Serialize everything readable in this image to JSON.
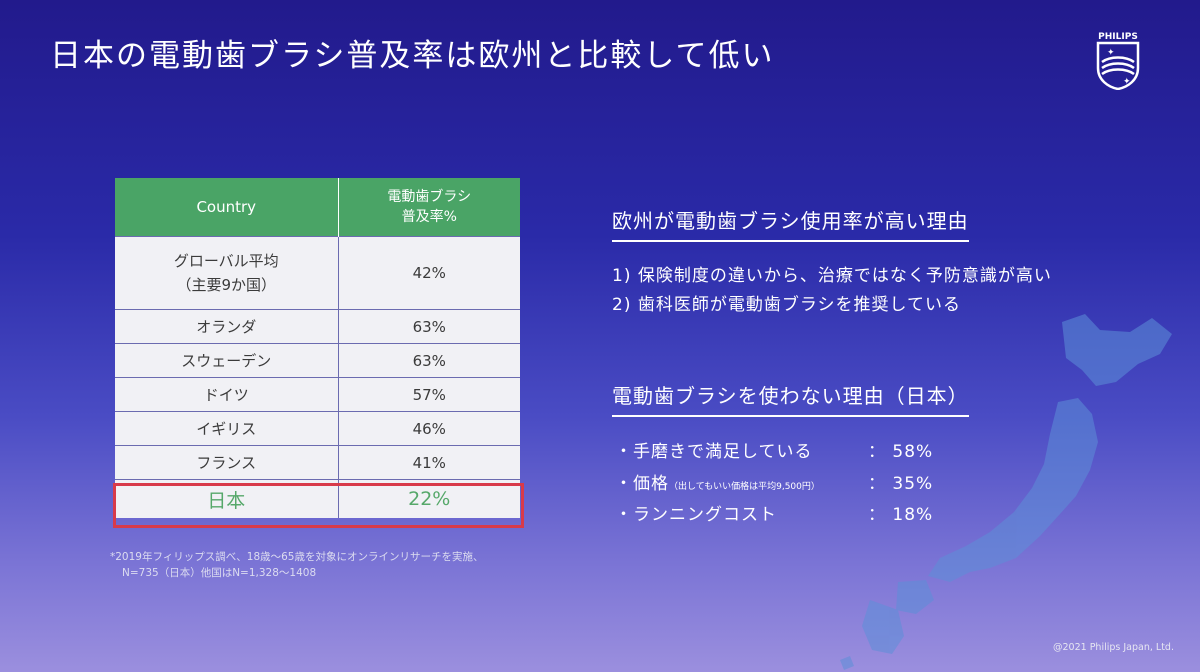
{
  "slide": {
    "title": "日本の電動歯ブラシ普及率は欧州と比較して低い",
    "brand_name": "PHILIPS",
    "copyright": "@2021 Philips Japan, Ltd."
  },
  "table": {
    "headers": [
      "Country",
      "電動歯ブラシ",
      "普及率%"
    ],
    "rows": [
      {
        "country_line1": "グローバル平均",
        "country_line2": "（主要9か国）",
        "rate": "42%"
      },
      {
        "country": "オランダ",
        "rate": "63%"
      },
      {
        "country": "スウェーデン",
        "rate": "63%"
      },
      {
        "country": "ドイツ",
        "rate": "57%"
      },
      {
        "country": "イギリス",
        "rate": "46%"
      },
      {
        "country": "フランス",
        "rate": "41%"
      },
      {
        "country": "日本",
        "rate": "22%"
      }
    ],
    "highlight_color": "#d83a4a",
    "header_color": "#4aa466"
  },
  "footnote": {
    "line1": "*2019年フィリップス調べ、18歳〜65歳を対象にオンラインリサーチを実施、",
    "line2": "N=735（日本）他国はN=1,328〜1408"
  },
  "europe_reasons": {
    "heading": "欧州が電動歯ブラシ使用率が高い理由",
    "items": [
      "1) 保険制度の違いから、治療ではなく予防意識が高い",
      "2) 歯科医師が電動歯ブラシを推奨している"
    ]
  },
  "japan_reasons": {
    "heading": "電動歯ブラシを使わない理由（日本）",
    "items": [
      {
        "label": "・手磨きで満足している",
        "value": "： 58%"
      },
      {
        "label": "・価格",
        "note": "（出してもいい価格は平均9,500円）",
        "value": "： 35%"
      },
      {
        "label": "・ランニングコスト",
        "value": "： 18%"
      }
    ]
  }
}
